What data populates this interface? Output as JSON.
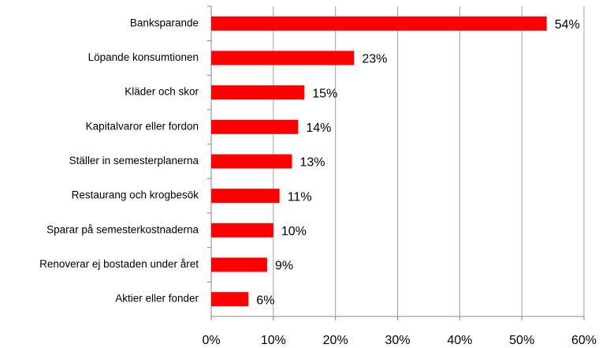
{
  "chart_data": {
    "type": "bar",
    "orientation": "horizontal",
    "categories": [
      "Banksparande",
      "Löpande konsumtionen",
      "Kläder och skor",
      "Kapitalvaror eller fordon",
      "Ställer in semesterplanerna",
      "Restaurang och krogbesök",
      "Sparar på semesterkostnaderna",
      "Renoverar ej bostaden under året",
      "Aktier eller fonder"
    ],
    "values": [
      54,
      23,
      15,
      14,
      13,
      11,
      10,
      9,
      6
    ],
    "value_labels": [
      "54%",
      "23%",
      "15%",
      "14%",
      "13%",
      "11%",
      "10%",
      "9%",
      "6%"
    ],
    "color": "#ff0000",
    "xlim": [
      0,
      60
    ],
    "xticks": [
      {
        "value": 0,
        "label": "0%"
      },
      {
        "value": 10,
        "label": "10%"
      },
      {
        "value": 20,
        "label": "20%"
      },
      {
        "value": 30,
        "label": "30%"
      },
      {
        "value": 40,
        "label": "40%"
      },
      {
        "value": 50,
        "label": "50%"
      },
      {
        "value": 60,
        "label": "60%"
      }
    ],
    "grid": true
  }
}
